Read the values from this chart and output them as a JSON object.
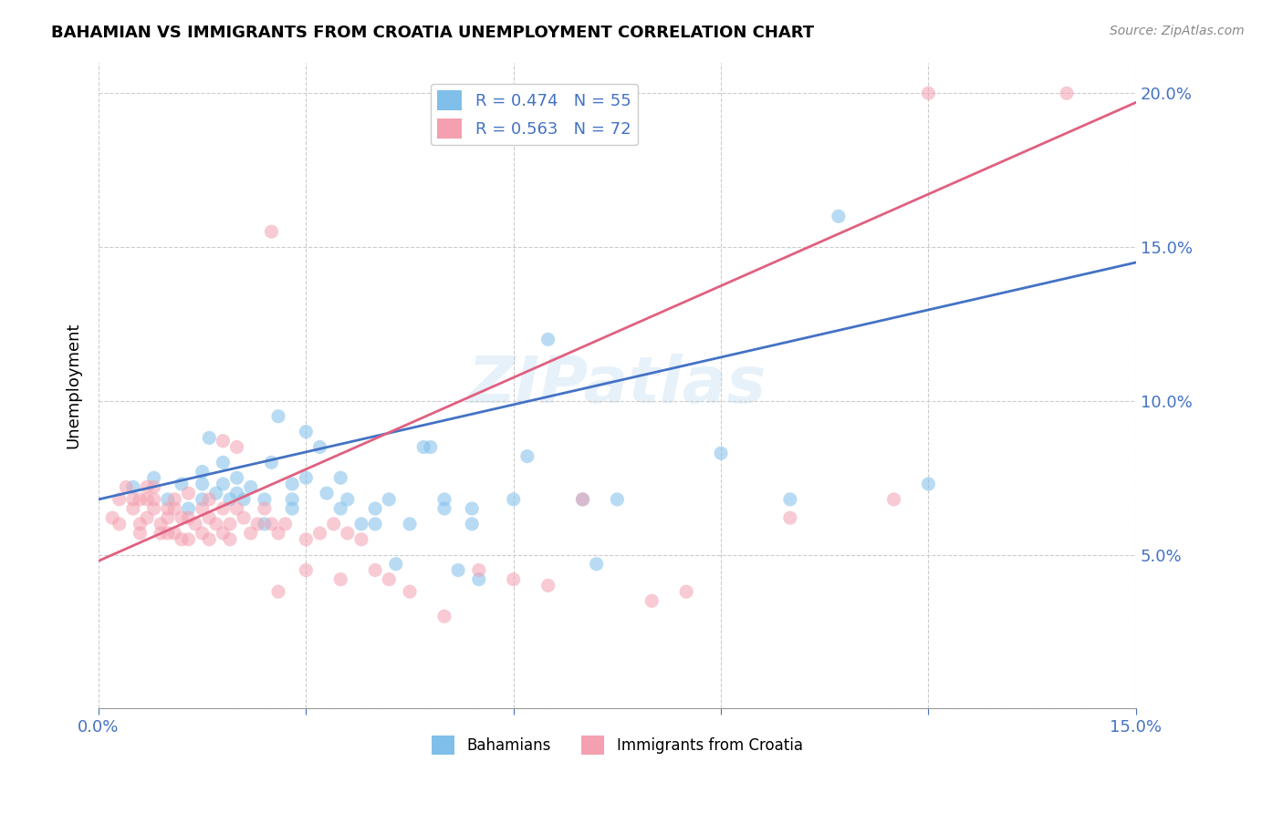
{
  "title": "BAHAMIAN VS IMMIGRANTS FROM CROATIA UNEMPLOYMENT CORRELATION CHART",
  "source": "Source: ZipAtlas.com",
  "xlabel_bottom": "",
  "ylabel": "Unemployment",
  "xlim": [
    0.0,
    0.15
  ],
  "ylim": [
    0.0,
    0.21
  ],
  "xticks": [
    0.0,
    0.03,
    0.06,
    0.09,
    0.12,
    0.15
  ],
  "yticks": [
    0.0,
    0.05,
    0.1,
    0.15,
    0.2
  ],
  "ytick_labels": [
    "",
    "5.0%",
    "10.0%",
    "15.0%",
    "20.0%"
  ],
  "xtick_labels": [
    "0.0%",
    "",
    "",
    "",
    "",
    "15.0%"
  ],
  "legend_entries": [
    {
      "label": "R = 0.474   N = 55",
      "color": "#6baed6"
    },
    {
      "label": "R = 0.563   N = 72",
      "color": "#f4a0b0"
    }
  ],
  "blue_color": "#5b9bd5",
  "pink_color": "#f4a0b0",
  "blue_scatter_color": "#7fbfea",
  "pink_scatter_color": "#f4a0b0",
  "watermark": "ZIPatlas",
  "blue_scatter": [
    [
      0.005,
      0.072
    ],
    [
      0.008,
      0.075
    ],
    [
      0.01,
      0.068
    ],
    [
      0.012,
      0.073
    ],
    [
      0.013,
      0.065
    ],
    [
      0.015,
      0.068
    ],
    [
      0.015,
      0.077
    ],
    [
      0.015,
      0.073
    ],
    [
      0.016,
      0.088
    ],
    [
      0.017,
      0.07
    ],
    [
      0.018,
      0.073
    ],
    [
      0.018,
      0.08
    ],
    [
      0.019,
      0.068
    ],
    [
      0.02,
      0.075
    ],
    [
      0.02,
      0.07
    ],
    [
      0.021,
      0.068
    ],
    [
      0.022,
      0.072
    ],
    [
      0.024,
      0.068
    ],
    [
      0.024,
      0.06
    ],
    [
      0.025,
      0.08
    ],
    [
      0.026,
      0.095
    ],
    [
      0.028,
      0.073
    ],
    [
      0.028,
      0.068
    ],
    [
      0.028,
      0.065
    ],
    [
      0.03,
      0.09
    ],
    [
      0.03,
      0.075
    ],
    [
      0.032,
      0.085
    ],
    [
      0.033,
      0.07
    ],
    [
      0.035,
      0.075
    ],
    [
      0.035,
      0.065
    ],
    [
      0.036,
      0.068
    ],
    [
      0.038,
      0.06
    ],
    [
      0.04,
      0.06
    ],
    [
      0.04,
      0.065
    ],
    [
      0.042,
      0.068
    ],
    [
      0.043,
      0.047
    ],
    [
      0.045,
      0.06
    ],
    [
      0.047,
      0.085
    ],
    [
      0.048,
      0.085
    ],
    [
      0.05,
      0.068
    ],
    [
      0.05,
      0.065
    ],
    [
      0.052,
      0.045
    ],
    [
      0.054,
      0.06
    ],
    [
      0.054,
      0.065
    ],
    [
      0.055,
      0.042
    ],
    [
      0.06,
      0.068
    ],
    [
      0.062,
      0.082
    ],
    [
      0.065,
      0.12
    ],
    [
      0.07,
      0.068
    ],
    [
      0.072,
      0.047
    ],
    [
      0.075,
      0.068
    ],
    [
      0.09,
      0.083
    ],
    [
      0.1,
      0.068
    ],
    [
      0.107,
      0.16
    ],
    [
      0.12,
      0.073
    ]
  ],
  "pink_scatter": [
    [
      0.002,
      0.062
    ],
    [
      0.003,
      0.068
    ],
    [
      0.003,
      0.06
    ],
    [
      0.004,
      0.072
    ],
    [
      0.005,
      0.068
    ],
    [
      0.005,
      0.065
    ],
    [
      0.006,
      0.068
    ],
    [
      0.006,
      0.06
    ],
    [
      0.006,
      0.057
    ],
    [
      0.007,
      0.072
    ],
    [
      0.007,
      0.068
    ],
    [
      0.007,
      0.062
    ],
    [
      0.008,
      0.072
    ],
    [
      0.008,
      0.068
    ],
    [
      0.008,
      0.065
    ],
    [
      0.009,
      0.06
    ],
    [
      0.009,
      0.057
    ],
    [
      0.01,
      0.065
    ],
    [
      0.01,
      0.062
    ],
    [
      0.01,
      0.057
    ],
    [
      0.011,
      0.068
    ],
    [
      0.011,
      0.065
    ],
    [
      0.011,
      0.057
    ],
    [
      0.012,
      0.062
    ],
    [
      0.012,
      0.055
    ],
    [
      0.013,
      0.07
    ],
    [
      0.013,
      0.062
    ],
    [
      0.013,
      0.055
    ],
    [
      0.014,
      0.06
    ],
    [
      0.015,
      0.065
    ],
    [
      0.015,
      0.057
    ],
    [
      0.016,
      0.068
    ],
    [
      0.016,
      0.062
    ],
    [
      0.016,
      0.055
    ],
    [
      0.017,
      0.06
    ],
    [
      0.018,
      0.087
    ],
    [
      0.018,
      0.065
    ],
    [
      0.018,
      0.057
    ],
    [
      0.019,
      0.06
    ],
    [
      0.019,
      0.055
    ],
    [
      0.02,
      0.085
    ],
    [
      0.02,
      0.065
    ],
    [
      0.021,
      0.062
    ],
    [
      0.022,
      0.057
    ],
    [
      0.023,
      0.06
    ],
    [
      0.024,
      0.065
    ],
    [
      0.025,
      0.155
    ],
    [
      0.025,
      0.06
    ],
    [
      0.026,
      0.057
    ],
    [
      0.026,
      0.038
    ],
    [
      0.027,
      0.06
    ],
    [
      0.03,
      0.055
    ],
    [
      0.03,
      0.045
    ],
    [
      0.032,
      0.057
    ],
    [
      0.034,
      0.06
    ],
    [
      0.035,
      0.042
    ],
    [
      0.036,
      0.057
    ],
    [
      0.038,
      0.055
    ],
    [
      0.04,
      0.045
    ],
    [
      0.042,
      0.042
    ],
    [
      0.045,
      0.038
    ],
    [
      0.05,
      0.03
    ],
    [
      0.055,
      0.045
    ],
    [
      0.06,
      0.042
    ],
    [
      0.065,
      0.04
    ],
    [
      0.07,
      0.068
    ],
    [
      0.08,
      0.035
    ],
    [
      0.085,
      0.038
    ],
    [
      0.1,
      0.062
    ],
    [
      0.115,
      0.068
    ],
    [
      0.12,
      0.2
    ],
    [
      0.14,
      0.2
    ]
  ],
  "blue_line": {
    "x0": 0.0,
    "y0": 0.068,
    "x1": 0.15,
    "y1": 0.145
  },
  "pink_line": {
    "x0": 0.0,
    "y0": 0.048,
    "x1": 0.15,
    "y1": 0.197
  }
}
